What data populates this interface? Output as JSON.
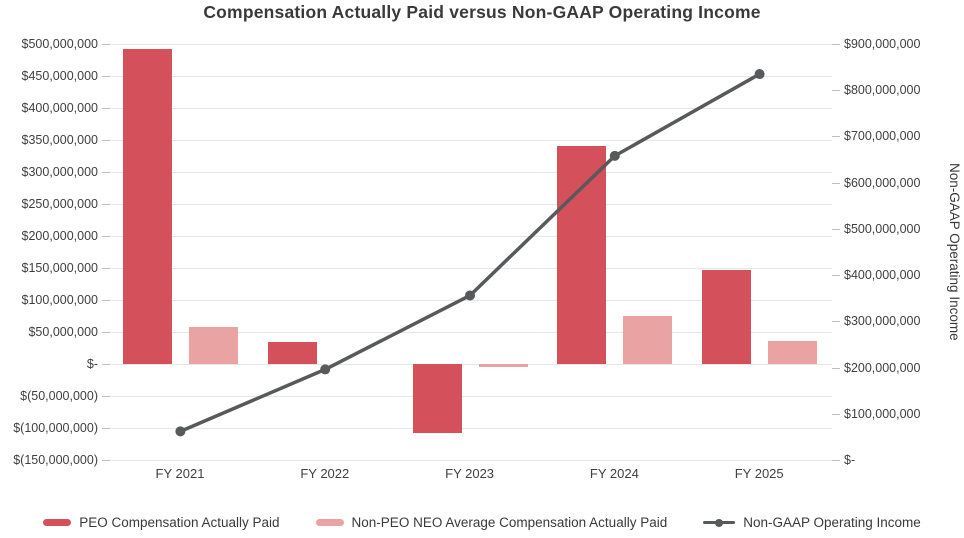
{
  "chart_data": {
    "type": "combo",
    "title": "Compensation Actually Paid versus Non-GAAP Operating Income",
    "categories": [
      "FY 2021",
      "FY 2022",
      "FY 2023",
      "FY 2024",
      "FY 2025"
    ],
    "series": [
      {
        "name": "PEO Compensation Actually Paid",
        "type": "bar",
        "axis": "left",
        "color": "#d4505b",
        "values": [
          492000000,
          34000000,
          -108000000,
          340000000,
          147000000
        ]
      },
      {
        "name": "Non-PEO NEO Average Compensation Actually Paid",
        "type": "bar",
        "axis": "left",
        "color": "#e9a3a3",
        "values": [
          58000000,
          0,
          -4000000,
          75000000,
          36000000
        ]
      },
      {
        "name": "Non-GAAP Operating Income",
        "type": "line",
        "axis": "right",
        "color": "#58595b",
        "values": [
          62000000,
          196000000,
          356000000,
          658000000,
          835000000
        ]
      }
    ],
    "left_axis": {
      "min": -150000000,
      "max": 500000000,
      "step": 50000000,
      "tick_labels": [
        "$500,000,000",
        "$450,000,000",
        "$400,000,000",
        "$350,000,000",
        "$300,000,000",
        "$250,000,000",
        "$200,000,000",
        "$150,000,000",
        "$100,000,000",
        "$50,000,000",
        "$-",
        "$(50,000,000)",
        "$(100,000,000)",
        "$(150,000,000)"
      ]
    },
    "right_axis": {
      "min": 0,
      "max": 900000000,
      "step": 100000000,
      "title": "Non-GAAP Operating Income",
      "tick_labels": [
        "$900,000,000",
        "$800,000,000",
        "$700,000,000",
        "$600,000,000",
        "$500,000,000",
        "$400,000,000",
        "$300,000,000",
        "$200,000,000",
        "$100,000,000",
        "$-"
      ]
    },
    "grid": true,
    "legend_position": "bottom"
  },
  "colors": {
    "bar_peo": "#d4505b",
    "bar_non_peo": "#e9a3a3",
    "line": "#58595b",
    "gridline": "#e6e6e6",
    "axis_text": "#404040",
    "title_text": "#3a3a3a",
    "background": "#ffffff"
  }
}
